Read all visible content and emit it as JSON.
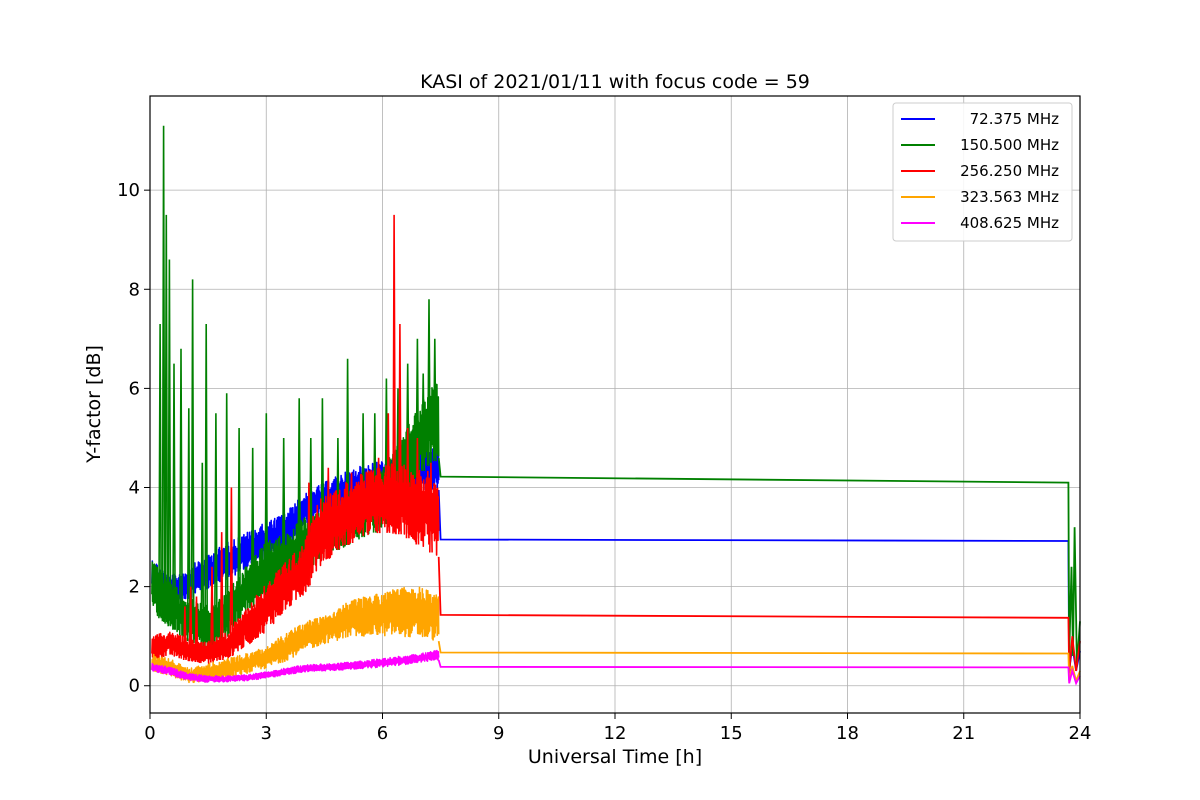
{
  "chart_data": {
    "type": "line",
    "title": "KASI of 2021/01/11 with focus code = 59",
    "xlabel": "Universal Time [h]",
    "ylabel": "Y-factor [dB]",
    "xlim": [
      0,
      24
    ],
    "ylim": [
      -0.55,
      11.9
    ],
    "xticks": [
      "0",
      "3",
      "6",
      "9",
      "12",
      "15",
      "18",
      "21",
      "24"
    ],
    "yticks": [
      "0",
      "2",
      "4",
      "6",
      "8",
      "10"
    ],
    "grid": true,
    "legend_position": "top-right",
    "series": [
      {
        "name": "72.375 MHz",
        "color": "#0000ff",
        "band": {
          "x": [
            0.05,
            0.5,
            1.0,
            1.5,
            2.0,
            2.5,
            3.0,
            3.5,
            4.0,
            4.5,
            5.0,
            5.5,
            6.0,
            6.5,
            7.0,
            7.45
          ],
          "low": [
            1.9,
            1.55,
            1.75,
            1.95,
            2.15,
            2.35,
            2.55,
            2.75,
            3.2,
            3.45,
            3.65,
            3.75,
            3.85,
            3.85,
            3.95,
            3.95
          ],
          "high": [
            2.6,
            2.2,
            2.4,
            2.65,
            2.9,
            3.1,
            3.3,
            3.5,
            3.9,
            4.1,
            4.3,
            4.45,
            4.55,
            4.55,
            4.75,
            4.8
          ]
        },
        "points": {
          "x": [
            7.5,
            23.7,
            23.72,
            23.8,
            23.9,
            24.0
          ],
          "y": [
            2.95,
            2.92,
            0.3,
            0.8,
            0.3,
            0.7
          ]
        }
      },
      {
        "name": "150.500 MHz",
        "color": "#008000",
        "band": {
          "x": [
            0.05,
            0.5,
            1.0,
            1.5,
            2.0,
            2.5,
            3.0,
            3.5,
            4.0,
            4.5,
            5.0,
            5.5,
            6.0,
            6.5,
            7.0,
            7.45
          ],
          "low": [
            1.5,
            1.2,
            0.9,
            0.7,
            1.0,
            1.5,
            1.8,
            2.0,
            2.3,
            2.6,
            2.8,
            3.0,
            3.15,
            3.8,
            4.3,
            4.6
          ],
          "high": [
            2.6,
            2.1,
            1.8,
            1.6,
            1.9,
            2.5,
            2.9,
            3.1,
            3.4,
            3.6,
            3.8,
            4.0,
            4.5,
            5.0,
            5.8,
            6.2
          ]
        },
        "spikes": {
          "x": [
            0.26,
            0.35,
            0.42,
            0.5,
            0.62,
            0.8,
            1.0,
            1.1,
            1.35,
            1.45,
            1.7,
            1.98,
            2.3,
            2.65,
            3.0,
            3.45,
            3.85,
            4.15,
            4.45,
            4.85,
            5.1,
            5.5,
            5.8,
            6.1,
            6.4,
            6.65,
            6.9,
            7.05,
            7.2,
            7.35
          ],
          "y": [
            7.3,
            11.3,
            9.5,
            8.6,
            6.5,
            6.8,
            5.6,
            8.2,
            4.5,
            7.3,
            5.5,
            5.9,
            5.2,
            4.8,
            5.5,
            5.0,
            5.8,
            5.0,
            5.8,
            5.0,
            6.6,
            5.5,
            5.5,
            6.2,
            6.0,
            6.5,
            7.0,
            6.3,
            7.8,
            7.0
          ]
        },
        "points": {
          "x": [
            7.5,
            23.7,
            23.72,
            23.78,
            23.82,
            23.86,
            23.92,
            24.0
          ],
          "y": [
            4.22,
            4.1,
            0.6,
            2.4,
            0.6,
            3.2,
            0.4,
            1.3
          ]
        }
      },
      {
        "name": "256.250 MHz",
        "color": "#ff0000",
        "band": {
          "x": [
            0.05,
            0.5,
            1.0,
            1.5,
            2.0,
            2.5,
            3.0,
            3.5,
            4.0,
            4.2,
            4.5,
            5.0,
            5.5,
            6.0,
            6.5,
            7.0,
            7.45
          ],
          "low": [
            0.5,
            0.6,
            0.5,
            0.45,
            0.55,
            0.8,
            1.1,
            1.5,
            1.85,
            2.2,
            2.5,
            2.8,
            3.0,
            3.1,
            3.05,
            2.8,
            2.6
          ],
          "high": [
            1.0,
            1.1,
            0.95,
            0.9,
            1.1,
            1.6,
            2.1,
            2.5,
            2.9,
            3.7,
            3.8,
            4.1,
            4.3,
            4.45,
            4.5,
            4.4,
            4.2
          ]
        },
        "spikes": {
          "x": [
            0.9,
            1.05,
            1.2,
            1.6,
            1.85,
            2.1,
            4.1,
            4.6,
            5.2,
            5.9,
            6.15,
            6.3,
            6.45,
            6.65,
            6.9,
            7.25
          ],
          "y": [
            1.6,
            2.0,
            1.8,
            2.4,
            3.1,
            4.0,
            4.1,
            4.4,
            4.3,
            4.6,
            5.5,
            9.5,
            7.3,
            5.2,
            5.0,
            4.5
          ]
        },
        "points": {
          "x": [
            7.5,
            23.7,
            23.72,
            23.8,
            23.9,
            24.0
          ],
          "y": [
            1.43,
            1.37,
            0.25,
            1.0,
            0.3,
            0.9
          ]
        }
      },
      {
        "name": "323.563 MHz",
        "color": "#ffa500",
        "band": {
          "x": [
            0.05,
            0.5,
            1.0,
            1.5,
            2.0,
            2.5,
            3.0,
            3.5,
            4.0,
            4.5,
            5.0,
            5.5,
            6.0,
            6.5,
            7.0,
            7.45
          ],
          "low": [
            0.3,
            0.2,
            0.05,
            0.08,
            0.15,
            0.25,
            0.35,
            0.5,
            0.7,
            0.85,
            0.95,
            1.0,
            1.0,
            1.0,
            0.95,
            0.9
          ],
          "high": [
            0.65,
            0.55,
            0.35,
            0.45,
            0.55,
            0.65,
            0.8,
            1.05,
            1.3,
            1.45,
            1.65,
            1.8,
            1.9,
            2.0,
            2.0,
            1.85
          ]
        },
        "points": {
          "x": [
            7.5,
            23.7,
            23.72,
            23.8,
            23.9,
            24.0
          ],
          "y": [
            0.67,
            0.65,
            0.1,
            0.4,
            0.1,
            0.3
          ]
        }
      },
      {
        "name": "408.625 MHz",
        "color": "#ff00ff",
        "band": {
          "x": [
            0.05,
            0.5,
            1.0,
            1.5,
            2.0,
            2.5,
            3.0,
            3.5,
            4.0,
            4.5,
            5.0,
            5.5,
            6.0,
            6.5,
            7.0,
            7.45
          ],
          "low": [
            0.3,
            0.22,
            0.1,
            0.07,
            0.08,
            0.1,
            0.15,
            0.22,
            0.28,
            0.3,
            0.32,
            0.35,
            0.38,
            0.42,
            0.48,
            0.52
          ],
          "high": [
            0.45,
            0.38,
            0.25,
            0.2,
            0.2,
            0.22,
            0.28,
            0.36,
            0.42,
            0.44,
            0.47,
            0.5,
            0.55,
            0.6,
            0.65,
            0.72
          ]
        },
        "points": {
          "x": [
            7.5,
            23.7,
            23.72,
            23.8,
            23.9,
            24.0
          ],
          "y": [
            0.38,
            0.37,
            0.05,
            0.3,
            0.05,
            0.2
          ]
        }
      }
    ]
  }
}
